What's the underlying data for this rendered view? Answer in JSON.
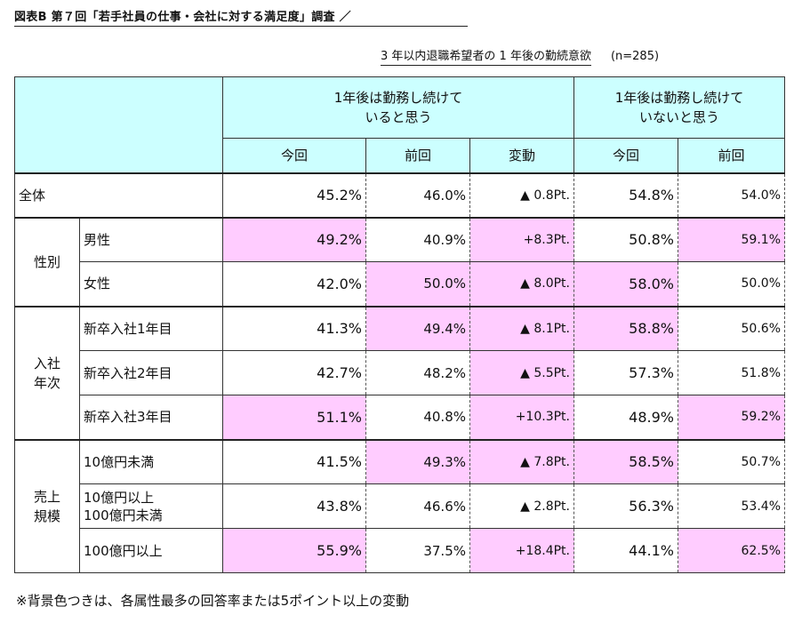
{
  "title": "図表B 第７回「若手社員の仕事・会社に対する満足度」調査 ／",
  "subtitle": "3 年以内退職希望者の 1 年後の勤続意欲",
  "sample": "(n=285)",
  "header": {
    "group1": "1年後は勤務し続けて\nいると思う",
    "group2": "1年後は勤務し続けて\nいないと思う",
    "cols": [
      "今回",
      "前回",
      "変動",
      "今回",
      "前回"
    ]
  },
  "highlight_color": "#ffccff",
  "header_color": "#ccffff",
  "groups": [
    {
      "label": "全体",
      "rows": [
        {
          "label": "全体",
          "values": [
            "45.2%",
            "46.0%",
            "▲ 0.8Pt.",
            "54.8%",
            "54.0%"
          ],
          "highlight": [
            false,
            false,
            false,
            false,
            false
          ]
        }
      ]
    },
    {
      "label": "性別",
      "rows": [
        {
          "label": "男性",
          "values": [
            "49.2%",
            "40.9%",
            "+8.3Pt.",
            "50.8%",
            "59.1%"
          ],
          "highlight": [
            true,
            false,
            true,
            false,
            true
          ]
        },
        {
          "label": "女性",
          "values": [
            "42.0%",
            "50.0%",
            "▲ 8.0Pt.",
            "58.0%",
            "50.0%"
          ],
          "highlight": [
            false,
            true,
            true,
            true,
            false
          ]
        }
      ]
    },
    {
      "label": "入社\n年次",
      "rows": [
        {
          "label": "新卒入社1年目",
          "values": [
            "41.3%",
            "49.4%",
            "▲ 8.1Pt.",
            "58.8%",
            "50.6%"
          ],
          "highlight": [
            false,
            true,
            true,
            true,
            false
          ]
        },
        {
          "label": "新卒入社2年目",
          "values": [
            "42.7%",
            "48.2%",
            "▲ 5.5Pt.",
            "57.3%",
            "51.8%"
          ],
          "highlight": [
            false,
            false,
            true,
            false,
            false
          ]
        },
        {
          "label": "新卒入社3年目",
          "values": [
            "51.1%",
            "40.8%",
            "+10.3Pt.",
            "48.9%",
            "59.2%"
          ],
          "highlight": [
            true,
            false,
            true,
            false,
            true
          ]
        }
      ]
    },
    {
      "label": "売上\n規模",
      "rows": [
        {
          "label": "10億円未満",
          "values": [
            "41.5%",
            "49.3%",
            "▲ 7.8Pt.",
            "58.5%",
            "50.7%"
          ],
          "highlight": [
            false,
            true,
            true,
            true,
            false
          ]
        },
        {
          "label": "10億円以上\n100億円未満",
          "values": [
            "43.8%",
            "46.6%",
            "▲ 2.8Pt.",
            "56.3%",
            "53.4%"
          ],
          "highlight": [
            false,
            false,
            false,
            false,
            false
          ]
        },
        {
          "label": "100億円以上",
          "values": [
            "55.9%",
            "37.5%",
            "+18.4Pt.",
            "44.1%",
            "62.5%"
          ],
          "highlight": [
            true,
            false,
            true,
            false,
            true
          ]
        }
      ]
    }
  ],
  "footnote": "※背景色つきは、各属性最多の回答率または5ポイント以上の変動"
}
